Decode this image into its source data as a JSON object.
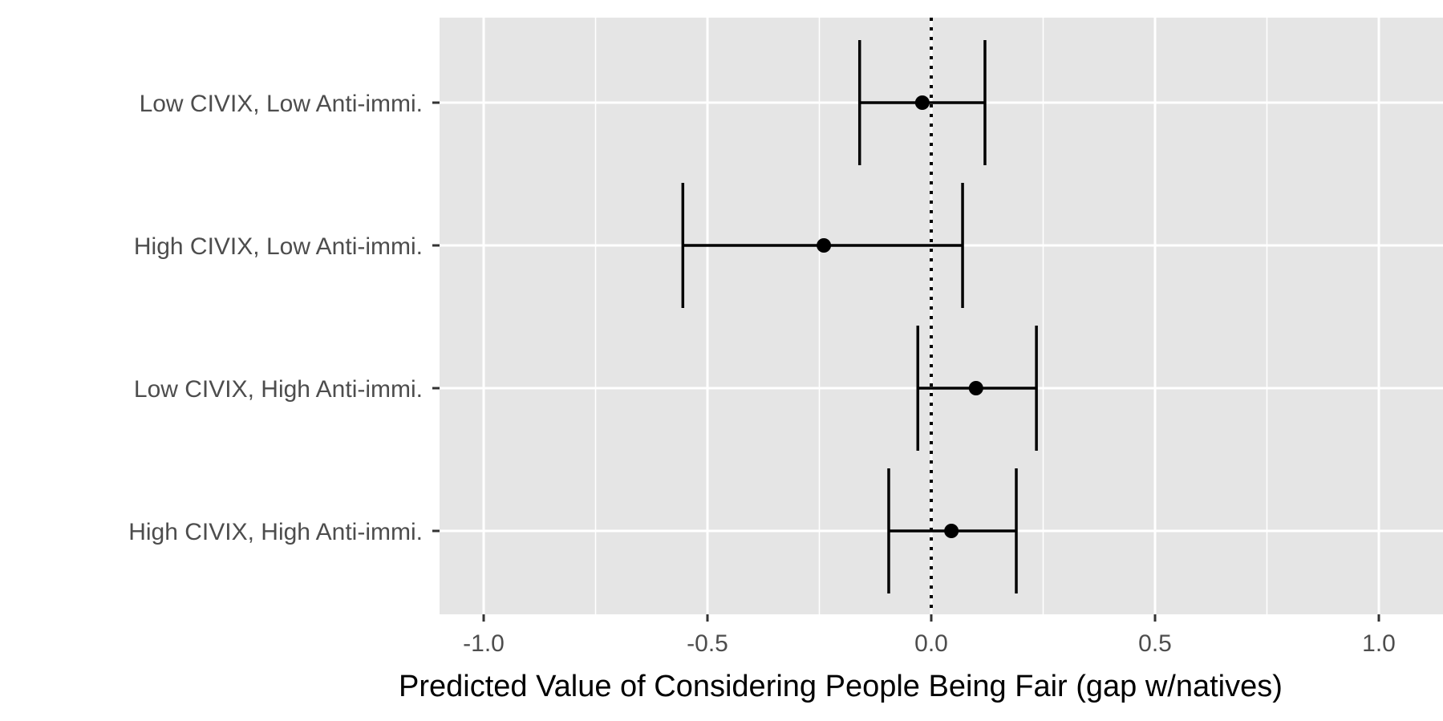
{
  "chart_data": {
    "type": "errorbar",
    "orientation": "horizontal",
    "title": "",
    "xlabel": "Predicted Value of Considering People Being Fair (gap w/natives)",
    "ylabel": "",
    "xlim": [
      -1.1,
      1.1
    ],
    "x_ticks": [
      -1.0,
      -0.5,
      0.0,
      0.5,
      1.0
    ],
    "x_tick_labels": [
      "-1.0",
      "-0.5",
      "0.0",
      "0.5",
      "1.0"
    ],
    "reference_line": {
      "x": 0.0,
      "style": "dotted"
    },
    "grid": true,
    "panel_background": "#e5e5e5",
    "mark_color": "#000000",
    "categories": [
      "Low CIVIX, Low Anti-immi.",
      "High CIVIX, Low Anti-immi.",
      "Low CIVIX, High Anti-immi.",
      "High CIVIX, High Anti-immi."
    ],
    "points": [
      {
        "label": "Low CIVIX, Low Anti-immi.",
        "estimate": -0.02,
        "lower": -0.16,
        "upper": 0.12
      },
      {
        "label": "High CIVIX, Low Anti-immi.",
        "estimate": -0.24,
        "lower": -0.555,
        "upper": 0.07
      },
      {
        "label": "Low CIVIX, High Anti-immi.",
        "estimate": 0.1,
        "lower": -0.03,
        "upper": 0.235
      },
      {
        "label": "High CIVIX, High Anti-immi.",
        "estimate": 0.045,
        "lower": -0.095,
        "upper": 0.19
      }
    ]
  }
}
